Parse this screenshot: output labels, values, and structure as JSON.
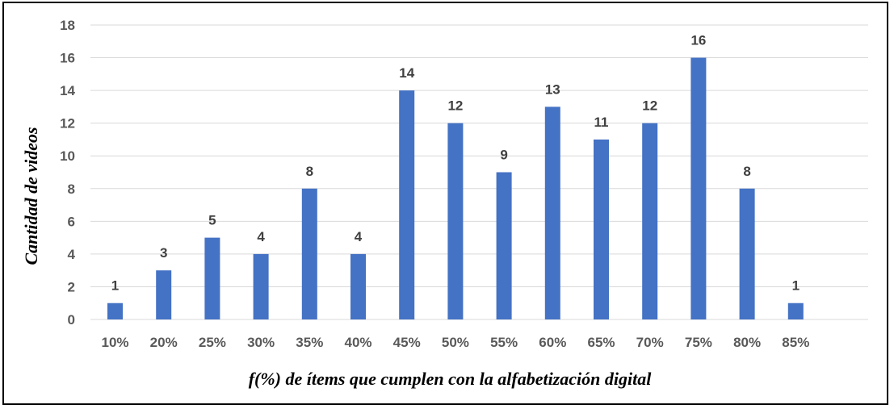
{
  "chart_data": {
    "type": "bar",
    "categories": [
      "10%",
      "20%",
      "25%",
      "30%",
      "35%",
      "40%",
      "45%",
      "50%",
      "55%",
      "60%",
      "65%",
      "70%",
      "75%",
      "80%",
      "85%"
    ],
    "values": [
      1,
      3,
      5,
      4,
      8,
      4,
      14,
      12,
      9,
      13,
      11,
      12,
      16,
      8,
      1
    ],
    "xlabel": "f(%) de ítems que cumplen con la alfabetización digital",
    "ylabel": "Cantidad de videos",
    "ylim": [
      0,
      18
    ],
    "yticks": [
      0,
      2,
      4,
      6,
      8,
      10,
      12,
      14,
      16,
      18
    ],
    "grid": true,
    "data_labels": true,
    "bar_color": "#4472C4",
    "grid_color": "#D9D9D9"
  }
}
